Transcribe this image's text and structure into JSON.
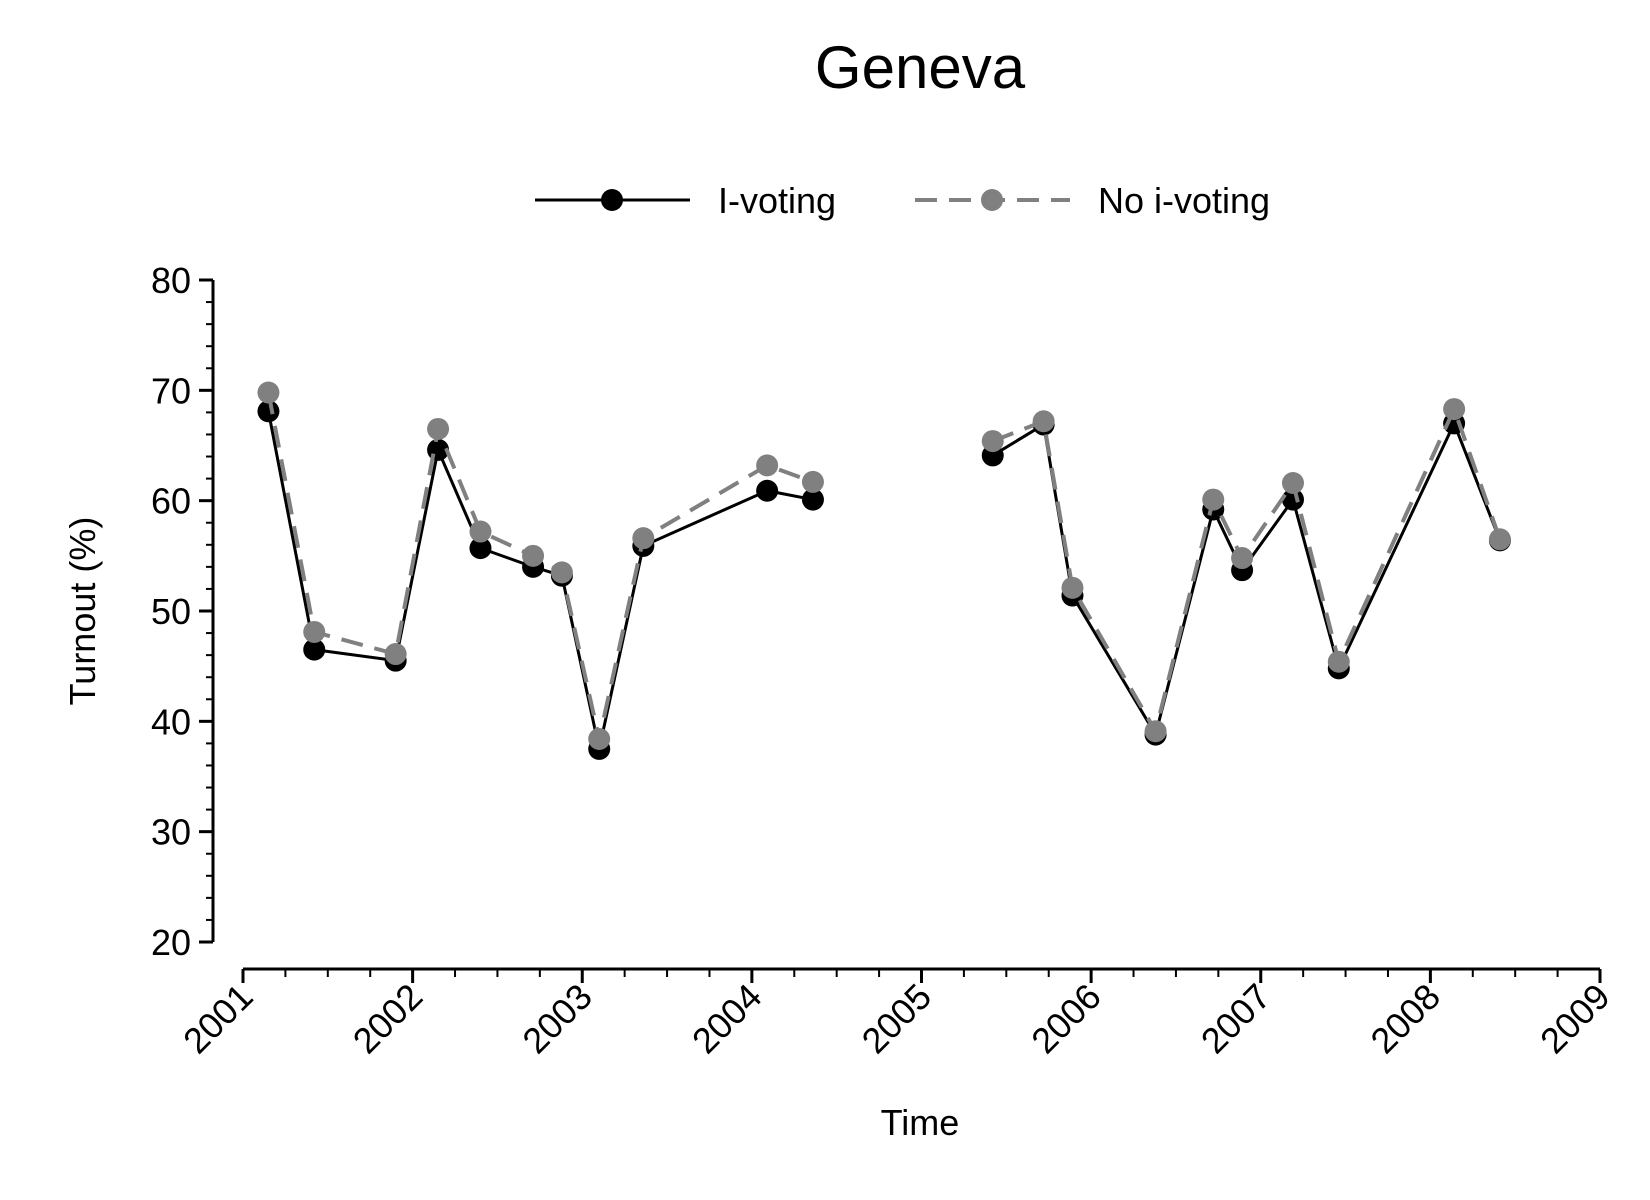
{
  "chart_data": {
    "type": "line",
    "title": "Geneva",
    "x_label": "Time",
    "y_label": "Turnout (%)",
    "x": [
      2001.15,
      2001.42,
      2001.9,
      2002.15,
      2002.4,
      2002.71,
      2002.88,
      2003.1,
      2003.36,
      2004.09,
      2004.36,
      null,
      2005.42,
      2005.72,
      2005.89,
      2006.38,
      2006.72,
      2006.89,
      2007.19,
      2007.46,
      2008.14,
      2008.41
    ],
    "series": [
      {
        "name": "I-voting",
        "color": "#000000",
        "dash": false,
        "values": [
          68.1,
          46.5,
          45.5,
          64.6,
          55.7,
          54.0,
          53.2,
          37.5,
          55.9,
          60.9,
          60.1,
          null,
          64.1,
          66.9,
          51.4,
          38.8,
          59.2,
          53.7,
          60.1,
          44.8,
          67.0,
          56.4
        ]
      },
      {
        "name": "No i-voting",
        "color": "#808080",
        "dash": true,
        "values": [
          69.8,
          48.1,
          46.1,
          66.5,
          57.2,
          55.0,
          53.5,
          38.4,
          56.6,
          63.2,
          61.7,
          null,
          65.4,
          67.2,
          52.1,
          39.1,
          60.1,
          54.8,
          61.6,
          45.4,
          68.3,
          56.5
        ]
      }
    ],
    "xlim": [
      2001,
      2009
    ],
    "xticks": [
      2001,
      2002,
      2003,
      2004,
      2005,
      2006,
      2007,
      2008,
      2009
    ],
    "ylim": [
      20,
      80
    ],
    "yticks": [
      20,
      30,
      40,
      50,
      60,
      70,
      80
    ],
    "legend": "top",
    "grid": false
  }
}
